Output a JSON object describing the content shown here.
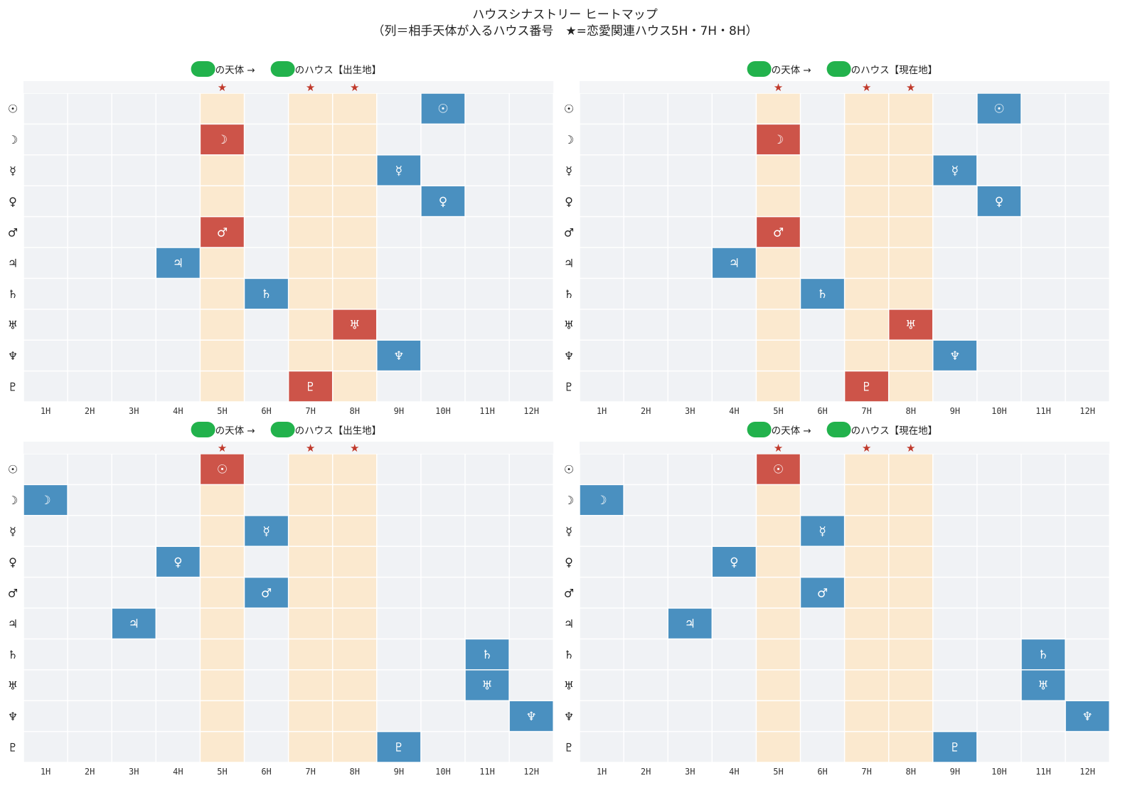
{
  "suptitle": {
    "line1": "ハウスシナストリー ヒートマップ",
    "line2": "（列＝相手天体が入るハウス番号　★=恋愛関連ハウス5H・7H・8H）"
  },
  "colors": {
    "bg_cell": "#f0f2f5",
    "highlight_column": "#fbe9cf",
    "romantic": "#cd5449",
    "other": "#4a90c0",
    "star": "#c0392b",
    "name_mask": "#22b24c"
  },
  "chart_data": [
    {
      "type": "heatmap",
      "title_parts": [
        "の天体 → ",
        "のハウス【出生地】"
      ],
      "columns": [
        "1H",
        "2H",
        "3H",
        "4H",
        "5H",
        "6H",
        "7H",
        "8H",
        "9H",
        "10H",
        "11H",
        "12H"
      ],
      "rows": [
        "☉",
        "☽",
        "☿",
        "♀",
        "♂",
        "♃",
        "♄",
        "♅",
        "♆",
        "♇"
      ],
      "star_columns": [
        "5H",
        "7H",
        "8H"
      ],
      "star_symbol": "★",
      "placements": [
        10,
        5,
        9,
        10,
        5,
        4,
        6,
        8,
        9,
        7
      ]
    },
    {
      "type": "heatmap",
      "title_parts": [
        "の天体 → ",
        "のハウス【現在地】"
      ],
      "columns": [
        "1H",
        "2H",
        "3H",
        "4H",
        "5H",
        "6H",
        "7H",
        "8H",
        "9H",
        "10H",
        "11H",
        "12H"
      ],
      "rows": [
        "☉",
        "☽",
        "☿",
        "♀",
        "♂",
        "♃",
        "♄",
        "♅",
        "♆",
        "♇"
      ],
      "star_columns": [
        "5H",
        "7H",
        "8H"
      ],
      "star_symbol": "★",
      "placements": [
        10,
        5,
        9,
        10,
        5,
        4,
        6,
        8,
        9,
        7
      ]
    },
    {
      "type": "heatmap",
      "title_parts": [
        "の天体 → ",
        "のハウス【出生地】"
      ],
      "columns": [
        "1H",
        "2H",
        "3H",
        "4H",
        "5H",
        "6H",
        "7H",
        "8H",
        "9H",
        "10H",
        "11H",
        "12H"
      ],
      "rows": [
        "☉",
        "☽",
        "☿",
        "♀",
        "♂",
        "♃",
        "♄",
        "♅",
        "♆",
        "♇"
      ],
      "star_columns": [
        "5H",
        "7H",
        "8H"
      ],
      "star_symbol": "★",
      "placements": [
        5,
        1,
        6,
        4,
        6,
        3,
        11,
        11,
        12,
        9
      ]
    },
    {
      "type": "heatmap",
      "title_parts": [
        "の天体 → ",
        "のハウス【現在地】"
      ],
      "columns": [
        "1H",
        "2H",
        "3H",
        "4H",
        "5H",
        "6H",
        "7H",
        "8H",
        "9H",
        "10H",
        "11H",
        "12H"
      ],
      "rows": [
        "☉",
        "☽",
        "☿",
        "♀",
        "♂",
        "♃",
        "♄",
        "♅",
        "♆",
        "♇"
      ],
      "star_columns": [
        "5H",
        "7H",
        "8H"
      ],
      "star_symbol": "★",
      "placements": [
        5,
        1,
        6,
        4,
        6,
        3,
        11,
        11,
        12,
        9
      ]
    }
  ]
}
